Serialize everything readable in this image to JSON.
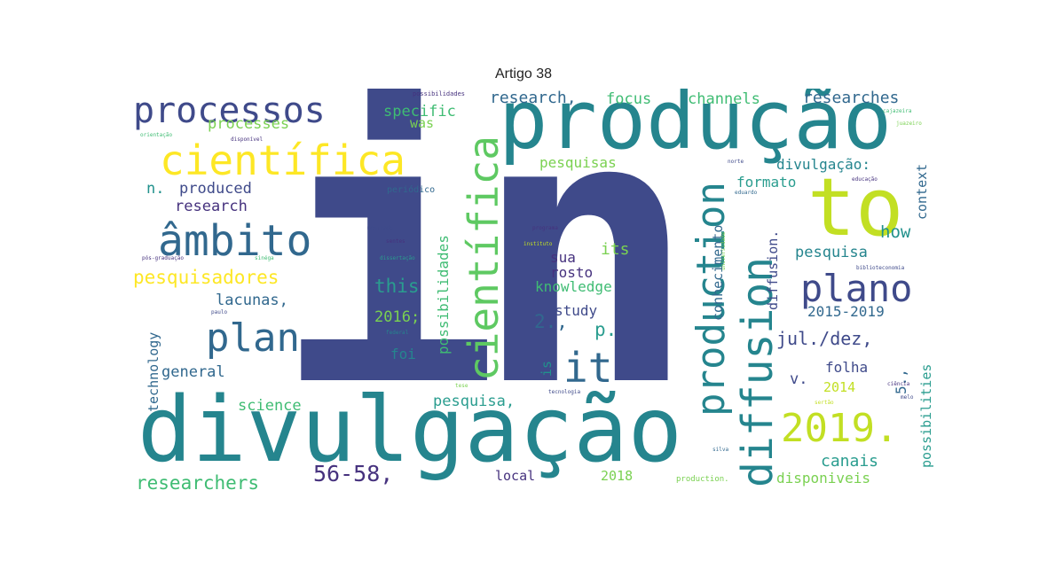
{
  "title": "Artigo 38",
  "palette": [
    "#3f4a8a",
    "#25858e",
    "#2a9d8f",
    "#3fbc73",
    "#7ad151",
    "#c2df23",
    "#fde725",
    "#46327e"
  ],
  "words": [
    {
      "text": "in",
      "color": "#3f4a8a"
    },
    {
      "text": "produção",
      "color": "#25858e"
    },
    {
      "text": "divulgação",
      "color": "#25858e"
    },
    {
      "text": "to",
      "color": "#c2df23"
    },
    {
      "text": "científica",
      "color": "#fde725"
    },
    {
      "text": "científica",
      "color": "#5ec962"
    },
    {
      "text": "processos",
      "color": "#3f4a8a"
    },
    {
      "text": "âmbito",
      "color": "#31688e"
    },
    {
      "text": "plano",
      "color": "#3f4a8a"
    },
    {
      "text": "plan",
      "color": "#31688e"
    },
    {
      "text": "production",
      "color": "#25858e"
    },
    {
      "text": "diffusion",
      "color": "#25858e"
    },
    {
      "text": "it",
      "color": "#31688e"
    },
    {
      "text": "2019.",
      "color": "#c2df23"
    },
    {
      "text": "pesquisadores",
      "color": "#fde725"
    },
    {
      "text": "researchers",
      "color": "#3fbc73"
    },
    {
      "text": "56-58,",
      "color": "#46327e"
    },
    {
      "text": "researches",
      "color": "#31688e"
    },
    {
      "text": "research,",
      "color": "#31688e"
    },
    {
      "text": "focus",
      "color": "#3fbc73"
    },
    {
      "text": "channels",
      "color": "#3fbc73"
    },
    {
      "text": "specific",
      "color": "#3fbc73"
    },
    {
      "text": "processes",
      "color": "#7ad151"
    },
    {
      "text": "was",
      "color": "#7ad151"
    },
    {
      "text": "pesquisas",
      "color": "#7ad151"
    },
    {
      "text": "n.",
      "color": "#21918c"
    },
    {
      "text": "produced",
      "color": "#3f4a8a"
    },
    {
      "text": "research",
      "color": "#46327e"
    },
    {
      "text": "divulgação:",
      "color": "#25858e"
    },
    {
      "text": "formato",
      "color": "#2a9d8f"
    },
    {
      "text": "context",
      "color": "#31688e"
    },
    {
      "text": "its",
      "color": "#7ad151"
    },
    {
      "text": "sua",
      "color": "#46327e"
    },
    {
      "text": "rosto",
      "color": "#46327e"
    },
    {
      "text": "knowledge",
      "color": "#3fbc73"
    },
    {
      "text": "this",
      "color": "#2a9d8f"
    },
    {
      "text": "pesquisa",
      "color": "#25858e"
    },
    {
      "text": "how",
      "color": "#21918c"
    },
    {
      "text": "lacunas,",
      "color": "#31688e"
    },
    {
      "text": "conhecimento",
      "color": "#31688e"
    },
    {
      "text": "diffusion.",
      "color": "#3f4a8a"
    },
    {
      "text": "2015-2019",
      "color": "#31688e"
    },
    {
      "text": "2016;",
      "color": "#7ad151"
    },
    {
      "text": "2.,",
      "color": "#31688e"
    },
    {
      "text": "p.",
      "color": "#2a9d8f"
    },
    {
      "text": "study",
      "color": "#3f4a8a"
    },
    {
      "text": "jul./dez,",
      "color": "#3f4a8a"
    },
    {
      "text": "possibilidades",
      "color": "#3fbc73"
    },
    {
      "text": "possibilities",
      "color": "#2a9d8f"
    },
    {
      "text": "technology",
      "color": "#31688e"
    },
    {
      "text": "general",
      "color": "#31688e"
    },
    {
      "text": "foi",
      "color": "#25858e"
    },
    {
      "text": "is",
      "color": "#21918c"
    },
    {
      "text": "v.",
      "color": "#3f4a8a"
    },
    {
      "text": "folha",
      "color": "#3f4a8a"
    },
    {
      "text": "2014",
      "color": "#c2df23"
    },
    {
      "text": "5.,",
      "color": "#31688e"
    },
    {
      "text": "science",
      "color": "#3fbc73"
    },
    {
      "text": "pesquisa,",
      "color": "#2a9d8f"
    },
    {
      "text": "canais",
      "color": "#2a9d8f"
    },
    {
      "text": "local",
      "color": "#46327e"
    },
    {
      "text": "2018",
      "color": "#7ad151"
    },
    {
      "text": "disponiveis",
      "color": "#7ad151"
    },
    {
      "text": "production.",
      "color": "#7ad151"
    },
    {
      "text": "possibilidades",
      "color": "#46327e"
    },
    {
      "text": "orientação",
      "color": "#3fbc73"
    },
    {
      "text": "disponível",
      "color": "#46327e"
    },
    {
      "text": "periódico",
      "color": "#31688e"
    },
    {
      "text": "mestrado",
      "color": "#3f4a8a"
    },
    {
      "text": "sentes",
      "color": "#46327e"
    },
    {
      "text": "dissertação",
      "color": "#2a9d8f"
    },
    {
      "text": "programa",
      "color": "#46327e"
    },
    {
      "text": "pós-graduação",
      "color": "#46327e"
    },
    {
      "text": "sinéga",
      "color": "#3fbc73"
    },
    {
      "text": "instituto",
      "color": "#c2df23"
    },
    {
      "text": "universidade",
      "color": "#7ad151"
    },
    {
      "text": "biblioteconomia",
      "color": "#3f4a8a"
    },
    {
      "text": "paulo",
      "color": "#3f4a8a"
    },
    {
      "text": "federal",
      "color": "#25858e"
    },
    {
      "text": "tese",
      "color": "#7ad151"
    },
    {
      "text": "tecnologia",
      "color": "#3f4a8a"
    },
    {
      "text": "norte",
      "color": "#3f4a8a"
    },
    {
      "text": "eduardo",
      "color": "#31688e"
    },
    {
      "text": "educação",
      "color": "#46327e"
    },
    {
      "text": "cajazeira",
      "color": "#3fbc73"
    },
    {
      "text": "juazeiro",
      "color": "#7ad151"
    },
    {
      "text": "ciência",
      "color": "#46327e"
    },
    {
      "text": "silva",
      "color": "#31688e"
    },
    {
      "text": "sertão",
      "color": "#c2df23"
    },
    {
      "text": "melo",
      "color": "#3f4a8a"
    }
  ]
}
